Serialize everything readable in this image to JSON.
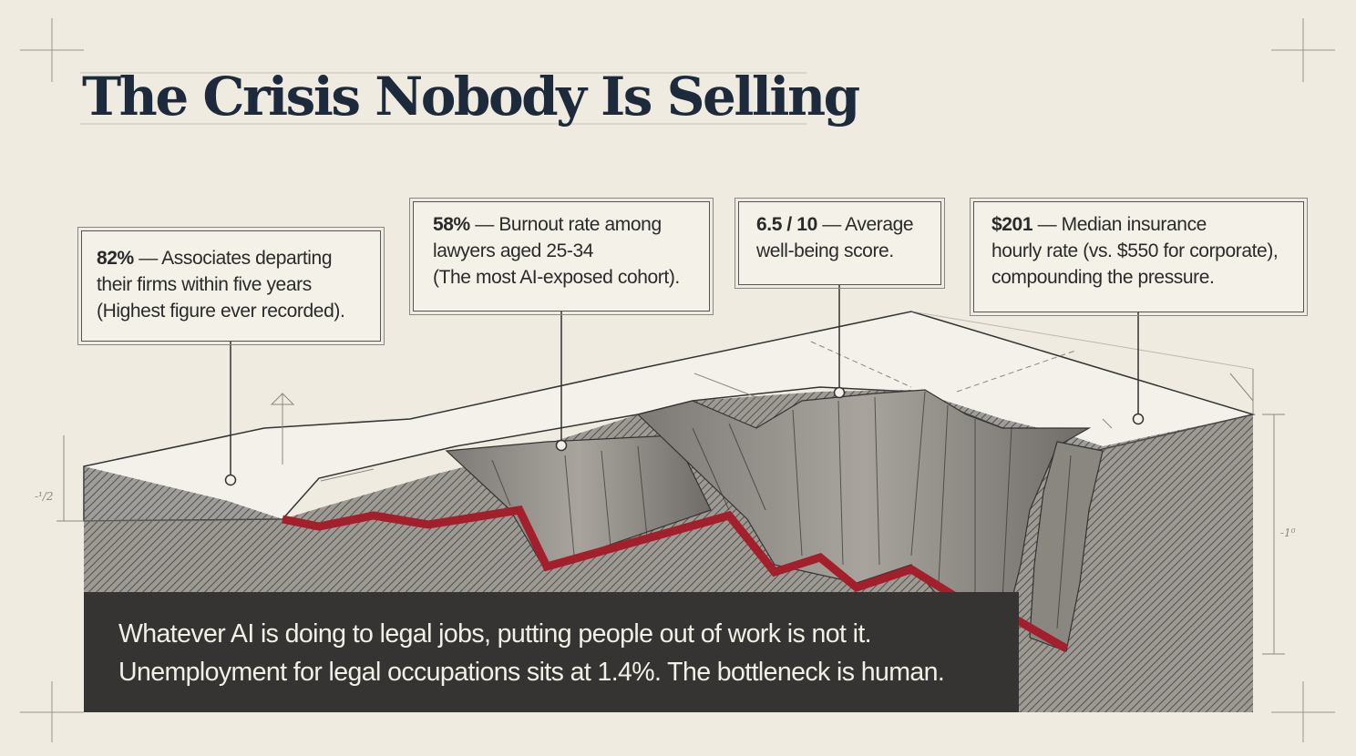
{
  "title": "The Crisis Nobody Is Selling",
  "callouts": [
    {
      "value": "82%",
      "lines": [
        "— Associates departing",
        "their firms within five years",
        "(Highest figure ever recorded)."
      ]
    },
    {
      "value": "58%",
      "lines": [
        "— Burnout rate among",
        "lawyers aged 25-34",
        "(The most AI-exposed cohort)."
      ]
    },
    {
      "value": "6.5 / 10",
      "lines": [
        "— Average",
        "well-being score."
      ]
    },
    {
      "value": "$201",
      "lines": [
        "— Median insurance",
        "hourly rate (vs. $550 for corporate),",
        "compounding the pressure."
      ]
    }
  ],
  "caption": {
    "line1": "Whatever AI is doing to legal jobs, putting people out of work is not it.",
    "line2": "Unemployment for legal occupations sits at 1.4%. The bottleneck is human."
  },
  "dimension_labels": {
    "left": "-¹/2",
    "right": "-1⁰"
  },
  "colors": {
    "background": "#efebe0",
    "title": "#1d2a3c",
    "rock": "#5a5856",
    "decline_line": "#a31f2c",
    "caption_bg": "#353432"
  }
}
